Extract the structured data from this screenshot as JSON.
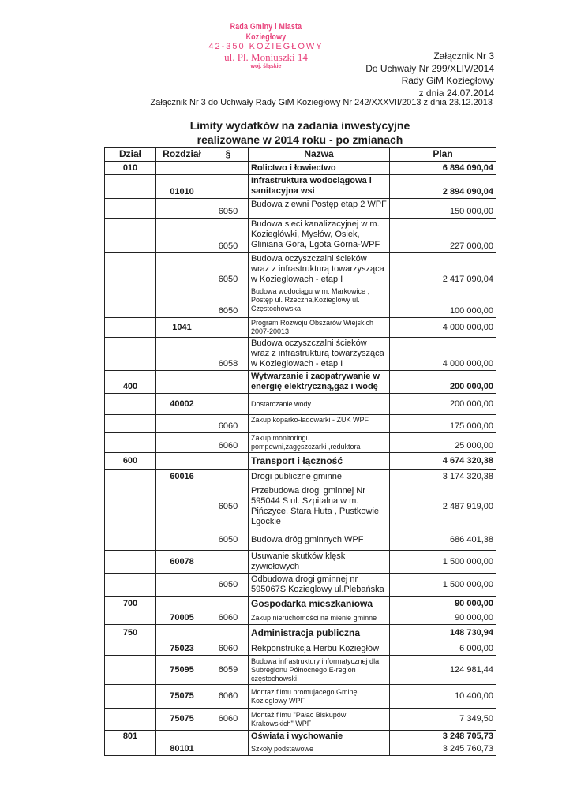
{
  "stamp": {
    "line1": "Rada Gminy i Miasta Koziegłowy",
    "line2": "42-350 KOZIEGŁOWY",
    "line3": "ul. Pl. Moniuszki 14",
    "line4": "woj. śląskie",
    "color": "#e8407a"
  },
  "header": {
    "line1": "Załącznik Nr 3",
    "line2": "Do Uchwały Nr 299/XLIV/2014",
    "line3": "Rady GiM Koziegłowy",
    "line4": "z dnia 24.07.2014",
    "reference": "Załącznik Nr 3 do Uchwały Rady GiM Koziegłowy Nr 242/XXXVII/2013 z dnia 23.12.2013"
  },
  "title": {
    "line1": "Limity wydatków na zadania inwestycyjne",
    "line2": "realizowane w 2014 roku - po zmianach"
  },
  "table": {
    "columns": [
      "Dział",
      "Rozdział",
      "§",
      "Nazwa",
      "Plan"
    ],
    "rows": [
      {
        "dzial": "010",
        "rozdzial": "",
        "paragraf": "",
        "nazwa": "Rolictwo i łowiectwo",
        "plan": "6 894 090,04"
      },
      {
        "dzial": "",
        "rozdzial": "01010",
        "paragraf": "",
        "nazwa": "Infrastruktura wodociągowa i sanitacyjna wsi",
        "plan": "2 894 090,04"
      },
      {
        "dzial": "",
        "rozdzial": "",
        "paragraf": "6050",
        "nazwa": "Budowa zlewni Postęp etap 2 WPF",
        "plan": "150 000,00"
      },
      {
        "dzial": "",
        "rozdzial": "",
        "paragraf": "6050",
        "nazwa": "Budowa sieci kanalizacyjnej w m. Koziegłówki, Mysłów, Osiek, Gliniana Góra, Lgota Górna-WPF",
        "plan": "227 000,00"
      },
      {
        "dzial": "",
        "rozdzial": "",
        "paragraf": "6050",
        "nazwa": "Budowa oczyszczalni ścieków wraz z infrastrukturą towarzysząca w Kozieglowach - etap I",
        "plan": "2 417 090,04"
      },
      {
        "dzial": "",
        "rozdzial": "",
        "paragraf": "6050",
        "nazwa": "Budowa wodociągu w m. Markowice , Postęp ul. Rzeczna,Kozieglowy ul. Częstochowska",
        "plan": "100 000,00"
      },
      {
        "dzial": "",
        "rozdzial": "1041",
        "paragraf": "",
        "nazwa": "Program Rozwoju Obszarów Wiejskich 2007-20013",
        "plan": "4 000 000,00"
      },
      {
        "dzial": "",
        "rozdzial": "",
        "paragraf": "6058",
        "nazwa": "Budowa oczyszczalni ścieków wraz z infrastrukturą towarzysząca w Kozieglowach - etap I",
        "plan": "4 000 000,00"
      },
      {
        "dzial": "400",
        "rozdzial": "",
        "paragraf": "",
        "nazwa": "Wytwarzanie i zaopatrywanie w energię elektryczną,gaz i wodę",
        "plan": "200 000,00"
      },
      {
        "dzial": "",
        "rozdzial": "40002",
        "paragraf": "",
        "nazwa": "Dostarczanie wody",
        "plan": "200 000,00"
      },
      {
        "dzial": "",
        "rozdzial": "",
        "paragraf": "6060",
        "nazwa": "Zakup koparko-ładowarki - ZUK WPF",
        "plan": "175 000,00"
      },
      {
        "dzial": "",
        "rozdzial": "",
        "paragraf": "6060",
        "nazwa": "Zakup monitoringu pompowni,zagęszczarki ,reduktora",
        "plan": "25 000,00"
      },
      {
        "dzial": "600",
        "rozdzial": "",
        "paragraf": "",
        "nazwa": "Transport i łączność",
        "plan": "4 674 320,38"
      },
      {
        "dzial": "",
        "rozdzial": "60016",
        "paragraf": "",
        "nazwa": "Drogi publiczne gminne",
        "plan": "3 174 320,38"
      },
      {
        "dzial": "",
        "rozdzial": "",
        "paragraf": "6050",
        "nazwa": "Przebudowa drogi gminnej Nr 595044 S ul. Szpitalna w m. Pińczyce, Stara Huta , Pustkowie Lgockie",
        "plan": "2 487 919,00"
      },
      {
        "dzial": "",
        "rozdzial": "",
        "paragraf": "6050",
        "nazwa": "Budowa dróg gminnych WPF",
        "plan": "686 401,38"
      },
      {
        "dzial": "",
        "rozdzial": "60078",
        "paragraf": "",
        "nazwa": "Usuwanie skutków klęsk żywiołowych",
        "plan": "1 500 000,00"
      },
      {
        "dzial": "",
        "rozdzial": "",
        "paragraf": "6050",
        "nazwa": "Odbudowa drogi gminnej nr 595067S Kozieglowy ul.Plebańska",
        "plan": "1 500 000,00"
      },
      {
        "dzial": "700",
        "rozdzial": "",
        "paragraf": "",
        "nazwa": "Gospodarka mieszkaniowa",
        "plan": "90 000,00"
      },
      {
        "dzial": "",
        "rozdzial": "70005",
        "paragraf": "6060",
        "nazwa": "Zakup nieruchomości na mienie gminne",
        "plan": "90 000,00"
      },
      {
        "dzial": "750",
        "rozdzial": "",
        "paragraf": "",
        "nazwa": "Administracja publiczna",
        "plan": "148 730,94"
      },
      {
        "dzial": "",
        "rozdzial": "75023",
        "paragraf": "6060",
        "nazwa": "Rekponstrukcja Herbu Koziegłów",
        "plan": "6 000,00"
      },
      {
        "dzial": "",
        "rozdzial": "75095",
        "paragraf": "6059",
        "nazwa": "Budowa infrastruktury informatycznej dla Subregionu Północnego E-region częstochowski",
        "plan": "124 981,44"
      },
      {
        "dzial": "",
        "rozdzial": "75075",
        "paragraf": "6060",
        "nazwa": "Montaz filmu promujacego Gminę Kozieglowy WPF",
        "plan": "10 400,00"
      },
      {
        "dzial": "",
        "rozdzial": "75075",
        "paragraf": "6060",
        "nazwa": "Montaż filmu  \"Pałac Biskupów Krakowskich\" WPF",
        "plan": "7 349,50"
      },
      {
        "dzial": "801",
        "rozdzial": "",
        "paragraf": "",
        "nazwa": "Oświata i wychowanie",
        "plan": "3 248 705,73"
      },
      {
        "dzial": "",
        "rozdzial": "80101",
        "paragraf": "",
        "nazwa": "Szkoły podstawowe",
        "plan": "3 245 760,73"
      }
    ]
  }
}
